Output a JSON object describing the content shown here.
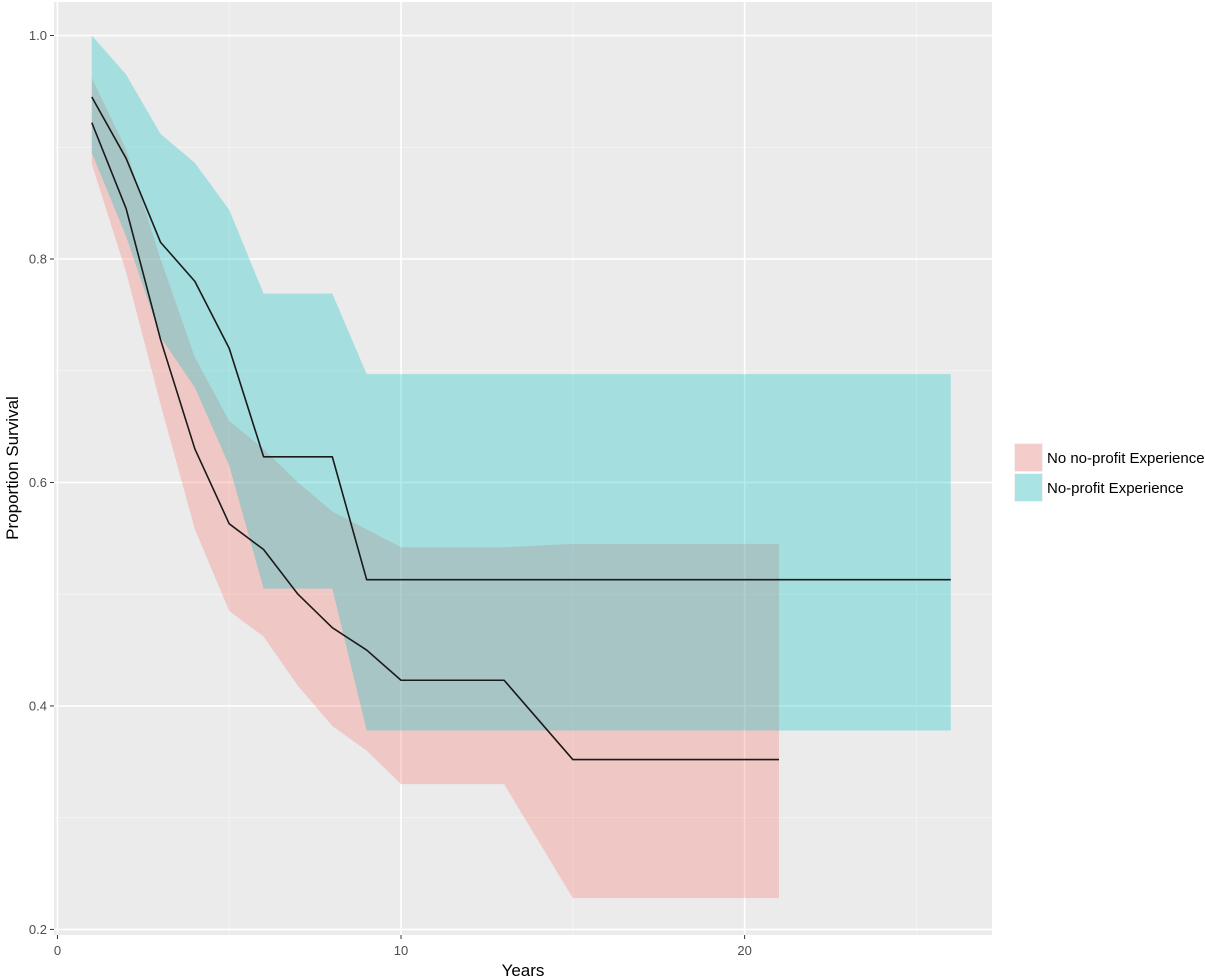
{
  "chart_data": {
    "type": "line",
    "xlabel": "Years",
    "ylabel": "Proportion Survival",
    "xlim": [
      -0.1,
      27.2
    ],
    "ylim": [
      0.195,
      1.03
    ],
    "x_ticks": [
      0,
      10,
      20
    ],
    "x_tick_labels": [
      "0",
      "10",
      "20"
    ],
    "y_ticks": [
      0.2,
      0.4,
      0.6,
      0.8,
      1.0
    ],
    "y_tick_labels": [
      "0.2",
      "0.4",
      "0.6",
      "0.8",
      "1.0"
    ],
    "grid": true,
    "legend_position": "right",
    "series": [
      {
        "name": "No no-profit Experience",
        "color": "#f8766d",
        "x": [
          1,
          2,
          3,
          4,
          5,
          6,
          7,
          8,
          9,
          10,
          13,
          15,
          21
        ],
        "values": [
          0.922,
          0.845,
          0.728,
          0.63,
          0.563,
          0.54,
          0.5,
          0.47,
          0.45,
          0.423,
          0.423,
          0.352,
          0.352
        ],
        "lower": [
          0.885,
          0.788,
          0.67,
          0.558,
          0.485,
          0.462,
          0.418,
          0.382,
          0.36,
          0.33,
          0.33,
          0.228,
          0.228
        ],
        "upper": [
          0.962,
          0.898,
          0.8,
          0.712,
          0.655,
          0.63,
          0.6,
          0.574,
          0.558,
          0.542,
          0.542,
          0.545,
          0.545
        ]
      },
      {
        "name": "No-profit Experience",
        "color": "#00bfc4",
        "x": [
          1,
          2,
          3,
          4,
          5,
          6,
          8,
          9,
          26
        ],
        "values": [
          0.945,
          0.89,
          0.815,
          0.78,
          0.72,
          0.623,
          0.623,
          0.513,
          0.513
        ],
        "lower": [
          0.895,
          0.82,
          0.73,
          0.685,
          0.615,
          0.505,
          0.505,
          0.378,
          0.378
        ],
        "upper": [
          1.0,
          0.965,
          0.912,
          0.886,
          0.844,
          0.769,
          0.769,
          0.697,
          0.697
        ]
      }
    ]
  }
}
